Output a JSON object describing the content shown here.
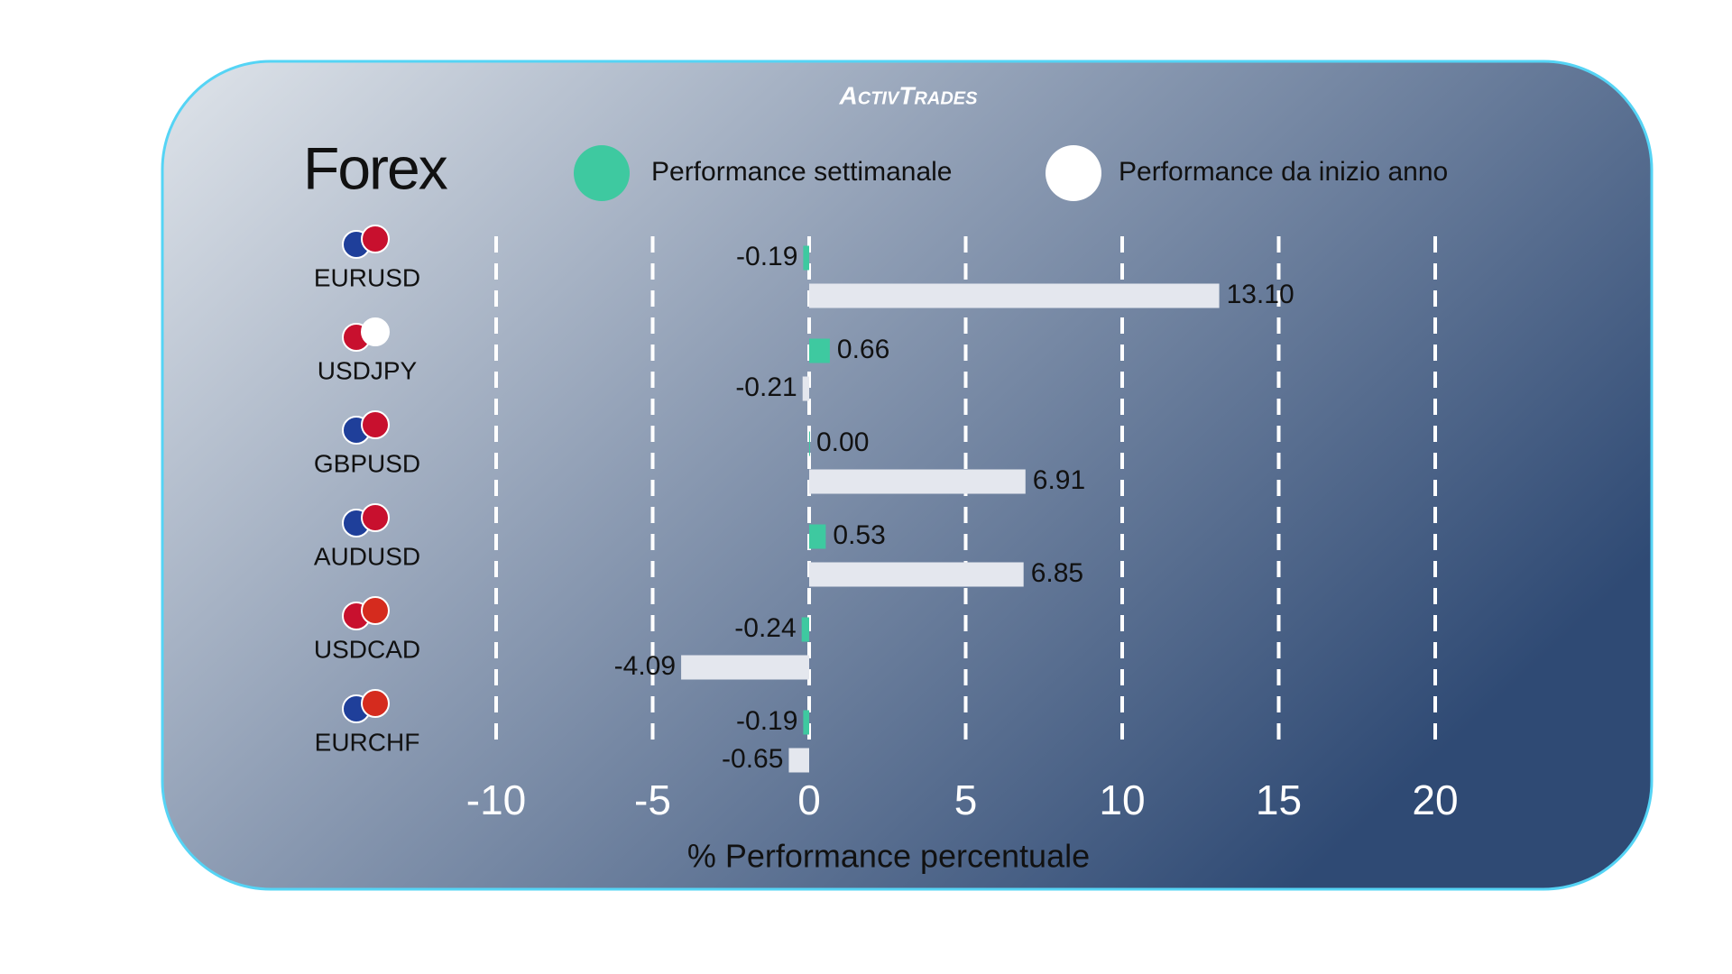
{
  "chart_data": {
    "type": "bar",
    "orientation": "horizontal",
    "brand": "ActivTrades",
    "title": "Forex",
    "x_label": "% Performance percentuale",
    "categories": [
      "EURUSD",
      "USDJPY",
      "GBPUSD",
      "AUDUSD",
      "USDCAD",
      "EURCHF"
    ],
    "series": [
      {
        "name": "Performance settimanale",
        "color": "#3ec9a0",
        "values": [
          -0.19,
          0.66,
          0.0,
          0.53,
          -0.24,
          -0.19
        ],
        "value_labels": [
          "-0.19",
          "0.66",
          "0.00",
          "0.53",
          "-0.24",
          "-0.19"
        ]
      },
      {
        "name": "Performance da inizio anno",
        "color": "#e4e7ee",
        "values": [
          13.1,
          -0.21,
          6.91,
          6.85,
          -4.09,
          -0.65
        ],
        "value_labels": [
          "13.10",
          "-0.21",
          "6.91",
          "6.85",
          "-4.09",
          "-0.65"
        ]
      }
    ],
    "xlim": [
      -10,
      20
    ],
    "xticks": [
      -10,
      -5,
      0,
      5,
      10,
      15,
      20
    ],
    "grid": true
  }
}
